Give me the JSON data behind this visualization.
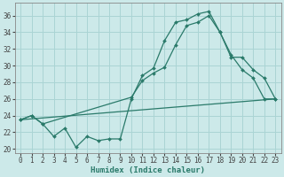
{
  "xlabel": "Humidex (Indice chaleur)",
  "xlim": [
    -0.5,
    23.5
  ],
  "ylim": [
    19.5,
    37.5
  ],
  "yticks": [
    20,
    22,
    24,
    26,
    28,
    30,
    32,
    34,
    36
  ],
  "xticks": [
    0,
    1,
    2,
    3,
    4,
    5,
    6,
    7,
    8,
    9,
    10,
    11,
    12,
    13,
    14,
    15,
    16,
    17,
    18,
    19,
    20,
    21,
    22,
    23
  ],
  "background_color": "#cce9e9",
  "grid_color": "#aad4d4",
  "line_color": "#2a7a6a",
  "line1_x": [
    0,
    1,
    2,
    3,
    4,
    5,
    6,
    7,
    8,
    9,
    10,
    11,
    12,
    13,
    14,
    15,
    16,
    17,
    18,
    19,
    20,
    21,
    22,
    23
  ],
  "line1_y": [
    23.5,
    24.0,
    23.0,
    21.5,
    22.5,
    20.2,
    21.5,
    21.0,
    21.2,
    21.2,
    26.0,
    28.8,
    29.7,
    33.0,
    35.2,
    35.5,
    36.2,
    36.5,
    34.0,
    31.3,
    29.5,
    28.5,
    26.0,
    26.0
  ],
  "line2_x": [
    0,
    1,
    2,
    10,
    11,
    12,
    13,
    14,
    15,
    16,
    17,
    18,
    19,
    20,
    21,
    22,
    23
  ],
  "line2_y": [
    23.5,
    24.0,
    23.0,
    26.2,
    28.2,
    29.1,
    29.8,
    32.5,
    34.8,
    35.2,
    36.0,
    34.0,
    31.0,
    31.0,
    29.5,
    28.5,
    26.0
  ],
  "line3_x": [
    0,
    23
  ],
  "line3_y": [
    23.5,
    26.0
  ],
  "tick_fontsize": 5.5,
  "xlabel_fontsize": 6.5
}
